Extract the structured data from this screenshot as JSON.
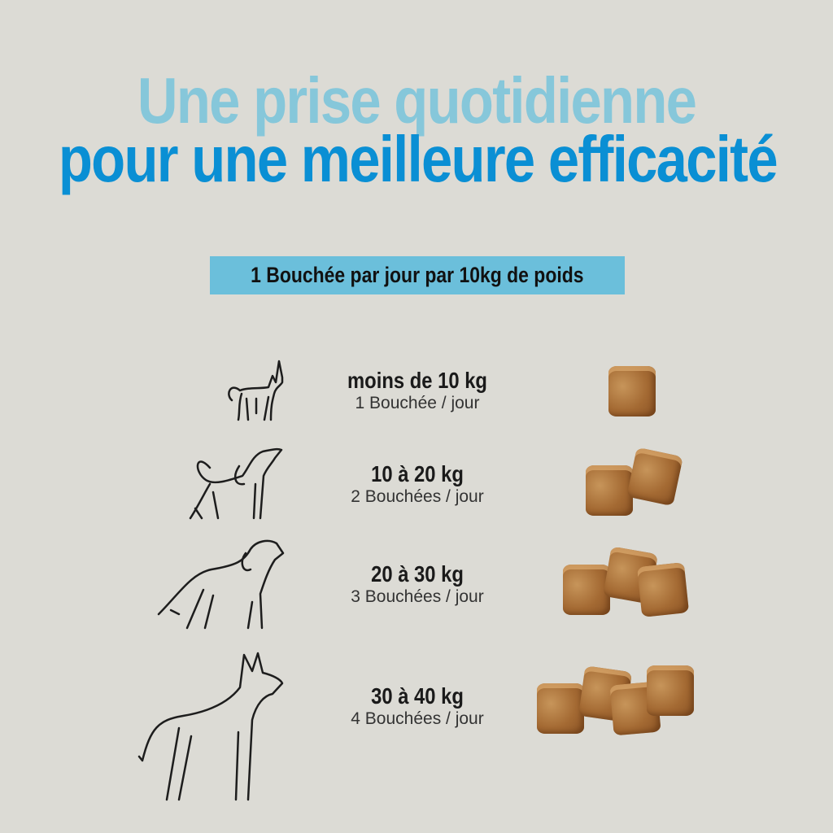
{
  "title": {
    "line1": "Une prise quotidienne",
    "line2": "pour une meilleure efficacité"
  },
  "banner": "1 Bouchée par jour par 10kg de poids",
  "colors": {
    "background": "#dcdbd5",
    "title_light": "#86c7da",
    "title_dark": "#0a8fd4",
    "banner": "#6bbfdb",
    "chew": "#a46a33"
  },
  "rows": [
    {
      "weight": "moins de 10 kg",
      "dose": "1 Bouchée / jour",
      "chews": 1,
      "icon": "small-dog-icon"
    },
    {
      "weight": "10 à 20 kg",
      "dose": "2 Bouchées / jour",
      "chews": 2,
      "icon": "medium-dog-icon"
    },
    {
      "weight": "20 à 30 kg",
      "dose": "3 Bouchées / jour",
      "chews": 3,
      "icon": "large-dog-icon"
    },
    {
      "weight": "30 à 40 kg",
      "dose": "4 Bouchées / jour",
      "chews": 4,
      "icon": "giant-dog-icon"
    }
  ]
}
